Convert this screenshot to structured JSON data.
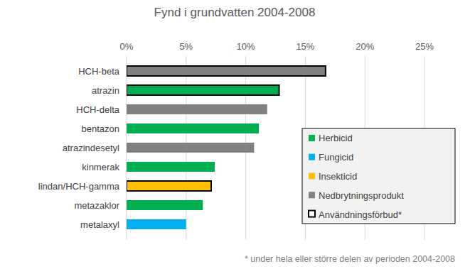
{
  "chart_data": {
    "type": "bar",
    "orientation": "horizontal",
    "title": "Fynd i grundvatten 2004-2008",
    "categories": [
      "HCH-beta",
      "atrazin",
      "HCH-delta",
      "bentazon",
      "atrazindesetyl",
      "kinmerak",
      "lindan/HCH-gamma",
      "metazaklor",
      "metalaxyl"
    ],
    "series": [
      {
        "name": "Herbicid",
        "color": "#00b050",
        "values": [
          null,
          12.8,
          null,
          11.1,
          null,
          7.4,
          null,
          6.4,
          null
        ]
      },
      {
        "name": "Fungicid",
        "color": "#00b0f0",
        "values": [
          null,
          null,
          null,
          null,
          null,
          null,
          null,
          null,
          5.0
        ]
      },
      {
        "name": "Insekticid",
        "color": "#ffc000",
        "values": [
          null,
          null,
          null,
          null,
          null,
          null,
          7.1,
          null,
          null
        ]
      },
      {
        "name": "Nedbrytningsprodukt",
        "color": "#808080",
        "values": [
          16.7,
          null,
          11.8,
          null,
          10.7,
          null,
          null,
          null,
          null
        ]
      },
      {
        "name": "Användningsförbud*",
        "type": "outline",
        "color": "#000000",
        "values": [
          16.7,
          12.8,
          null,
          null,
          null,
          null,
          7.1,
          null,
          null
        ]
      }
    ],
    "xlim": [
      0,
      25
    ],
    "xticks": [
      {
        "value": 0,
        "label": "0%"
      },
      {
        "value": 5,
        "label": "5%"
      },
      {
        "value": 10,
        "label": "10%"
      },
      {
        "value": 15,
        "label": "15%"
      },
      {
        "value": 20,
        "label": "20%"
      },
      {
        "value": 25,
        "label": "25%"
      }
    ],
    "grid": true,
    "legend": "lower right",
    "annotations": [
      "* under hela eller större delen av perioden 2004-2008"
    ]
  }
}
